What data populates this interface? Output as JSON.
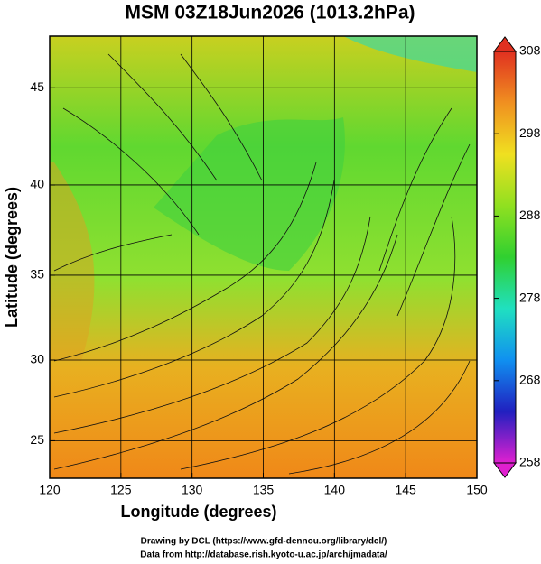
{
  "chart_data": {
    "type": "map",
    "title": "MSM 03Z18Jun2026 (1013.2hPa)",
    "x_label": "Longitude (degrees)",
    "y_label": "Latitude  (degrees)",
    "xlim": [
      120,
      150
    ],
    "xticks": [
      120,
      125,
      130,
      135,
      140,
      145,
      150
    ],
    "ylim": [
      22.6,
      47.5
    ],
    "yticks": [
      25,
      30,
      35,
      40,
      45
    ],
    "y_scale": "mercator",
    "grid": true,
    "colorbar": {
      "range": [
        258,
        308
      ],
      "ticks": [
        258,
        268,
        278,
        288,
        298,
        308
      ],
      "colors": [
        "#e020d0",
        "#2020c0",
        "#1090f0",
        "#20e0c0",
        "#30d030",
        "#90e020",
        "#f0e020",
        "#f09020",
        "#e03020"
      ]
    },
    "credits": [
      "Drawing by DCL (https://www.gfd-dennou.org/library/dcl/)",
      "Data from http://database.rish.kyoto-u.ac.jp/arch/jmadata/"
    ]
  }
}
